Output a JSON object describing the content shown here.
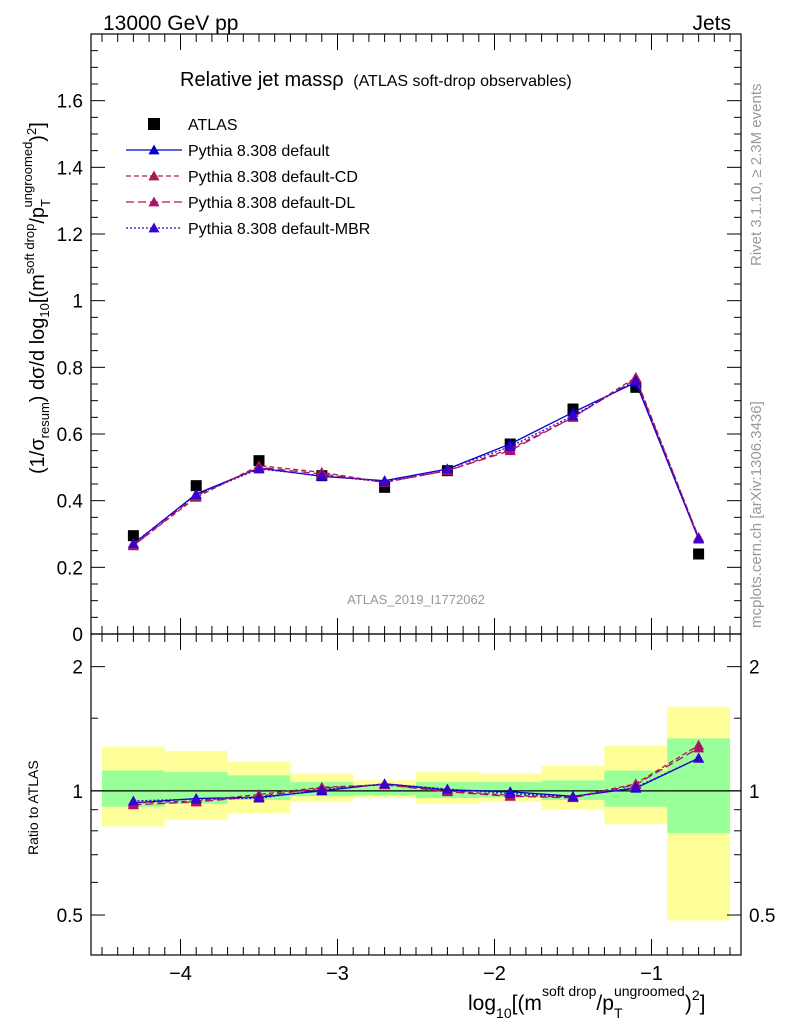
{
  "header": {
    "energy": "13000 GeV pp",
    "process": "Jets",
    "title_main": "Relative jet mass",
    "title_rho": "ρ",
    "title_sub": "(ATLAS soft-drop observables)",
    "watermark": "ATLAS_2019_I1772062",
    "side_rivet": "Rivet 3.1.10, ≥ 2.3M events",
    "side_mcplots": "mcplots.cern.ch [arXiv:1306.3436]"
  },
  "axes": {
    "ylabel_main": "(1/σresum) dσ/d log10[(m^(soft drop)/pT^(ungroomed))²]",
    "ylabel_ratio": "Ratio to ATLAS",
    "xlabel": "log10[(m^(soft drop)/pT^(ungroomed))²]"
  },
  "chart_data": [
    {
      "type": "line",
      "panel": "main",
      "x": [
        -4.3,
        -3.9,
        -3.5,
        -3.1,
        -2.7,
        -2.3,
        -1.9,
        -1.5,
        -1.1,
        -0.7
      ],
      "bin_edges": [
        -4.5,
        -4.1,
        -3.7,
        -3.3,
        -2.9,
        -2.5,
        -2.1,
        -1.7,
        -1.3,
        -0.9,
        -0.5
      ],
      "xlim": [
        -4.57,
        -0.43
      ],
      "ylim": [
        0,
        1.8
      ],
      "x_ticks": [
        -4,
        -3,
        -2,
        -1
      ],
      "y_ticks": [
        0,
        0.2,
        0.4,
        0.6,
        0.8,
        1,
        1.2,
        1.4,
        1.6
      ],
      "series": [
        {
          "name": "ATLAS",
          "key": "data",
          "color": "#000000",
          "marker": "square",
          "values": [
            0.295,
            0.445,
            0.52,
            0.475,
            0.44,
            0.49,
            0.57,
            0.675,
            0.74,
            0.24
          ]
        },
        {
          "name": "Pythia 8.308 default",
          "key": "default",
          "color": "#0000cc",
          "dash": "",
          "marker": "triangle",
          "values": [
            0.27,
            0.42,
            0.498,
            0.473,
            0.46,
            0.495,
            0.57,
            0.665,
            0.755,
            0.285
          ]
        },
        {
          "name": "Pythia 8.308 default-CD",
          "key": "cd",
          "color": "#a0204a",
          "dash": "5,3",
          "marker": "triangle",
          "values": [
            0.265,
            0.41,
            0.505,
            0.485,
            0.455,
            0.49,
            0.555,
            0.65,
            0.77,
            0.29
          ]
        },
        {
          "name": "Pythia 8.308 default-DL",
          "key": "dl",
          "color": "#b0106a",
          "dash": "8,4",
          "marker": "triangle",
          "values": [
            0.265,
            0.415,
            0.5,
            0.48,
            0.455,
            0.49,
            0.55,
            0.65,
            0.765,
            0.29
          ]
        },
        {
          "name": "Pythia 8.308 default-MBR",
          "key": "mbr",
          "color": "#3a00cc",
          "dash": "2,2",
          "marker": "triangle",
          "values": [
            0.272,
            0.418,
            0.495,
            0.475,
            0.457,
            0.495,
            0.562,
            0.655,
            0.76,
            0.285
          ]
        }
      ]
    },
    {
      "type": "line",
      "panel": "ratio",
      "x": [
        -4.3,
        -3.9,
        -3.5,
        -3.1,
        -2.7,
        -2.3,
        -1.9,
        -1.5,
        -1.1,
        -0.7
      ],
      "ylim_log": [
        0.4,
        2.4
      ],
      "y_ticks": [
        0.5,
        1,
        2
      ],
      "reference": 1,
      "band_inner": {
        "color": "#99ff99",
        "low": [
          0.915,
          0.93,
          0.95,
          0.97,
          0.975,
          0.96,
          0.965,
          0.95,
          0.915,
          0.79
        ],
        "high": [
          1.12,
          1.11,
          1.09,
          1.05,
          1.03,
          1.05,
          1.05,
          1.06,
          1.12,
          1.34
        ]
      },
      "band_outer": {
        "color": "#ffff99",
        "low": [
          0.82,
          0.85,
          0.88,
          0.94,
          0.96,
          0.93,
          0.94,
          0.9,
          0.83,
          0.485
        ],
        "high": [
          1.28,
          1.25,
          1.18,
          1.1,
          1.06,
          1.11,
          1.1,
          1.15,
          1.29,
          1.6
        ]
      },
      "series": [
        {
          "key": "default",
          "color": "#0000cc",
          "dash": "",
          "values": [
            0.935,
            0.958,
            0.965,
            1.0,
            1.04,
            1.005,
            0.995,
            0.97,
            1.015,
            1.2
          ]
        },
        {
          "key": "cd",
          "color": "#a0204a",
          "dash": "5,3",
          "values": [
            0.935,
            0.945,
            0.98,
            1.02,
            1.035,
            1.0,
            0.975,
            0.965,
            1.04,
            1.29
          ]
        },
        {
          "key": "dl",
          "color": "#b0106a",
          "dash": "8,4",
          "values": [
            0.925,
            0.94,
            0.97,
            1.015,
            1.035,
            0.995,
            0.97,
            0.962,
            1.035,
            1.27
          ]
        },
        {
          "key": "mbr",
          "color": "#3a00cc",
          "dash": "2,2",
          "values": [
            0.945,
            0.955,
            0.96,
            1.005,
            1.04,
            1.01,
            0.985,
            0.968,
            1.02,
            1.2
          ]
        }
      ]
    }
  ]
}
